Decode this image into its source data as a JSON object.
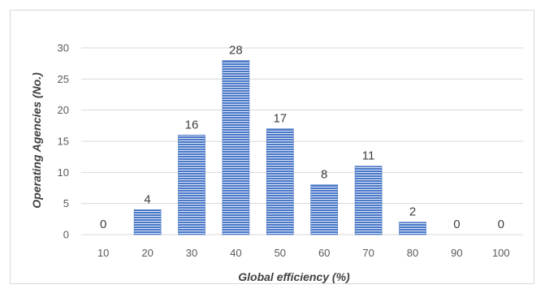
{
  "chart_data": {
    "type": "bar",
    "title": "",
    "xlabel": "Global efficiency (%)",
    "ylabel": "Operating Agencies (No.)",
    "categories": [
      "10",
      "20",
      "30",
      "40",
      "50",
      "60",
      "70",
      "80",
      "90",
      "100"
    ],
    "values": [
      0,
      4,
      16,
      28,
      17,
      8,
      11,
      2,
      0,
      0
    ],
    "ylim": [
      0,
      30
    ],
    "yticks": [
      0,
      5,
      10,
      15,
      20,
      25,
      30
    ],
    "grid": true,
    "legend": "none",
    "data_labels": true,
    "colors": {
      "bar": "#4472c4",
      "grid": "#d9d9d9",
      "text": "#595959"
    }
  }
}
